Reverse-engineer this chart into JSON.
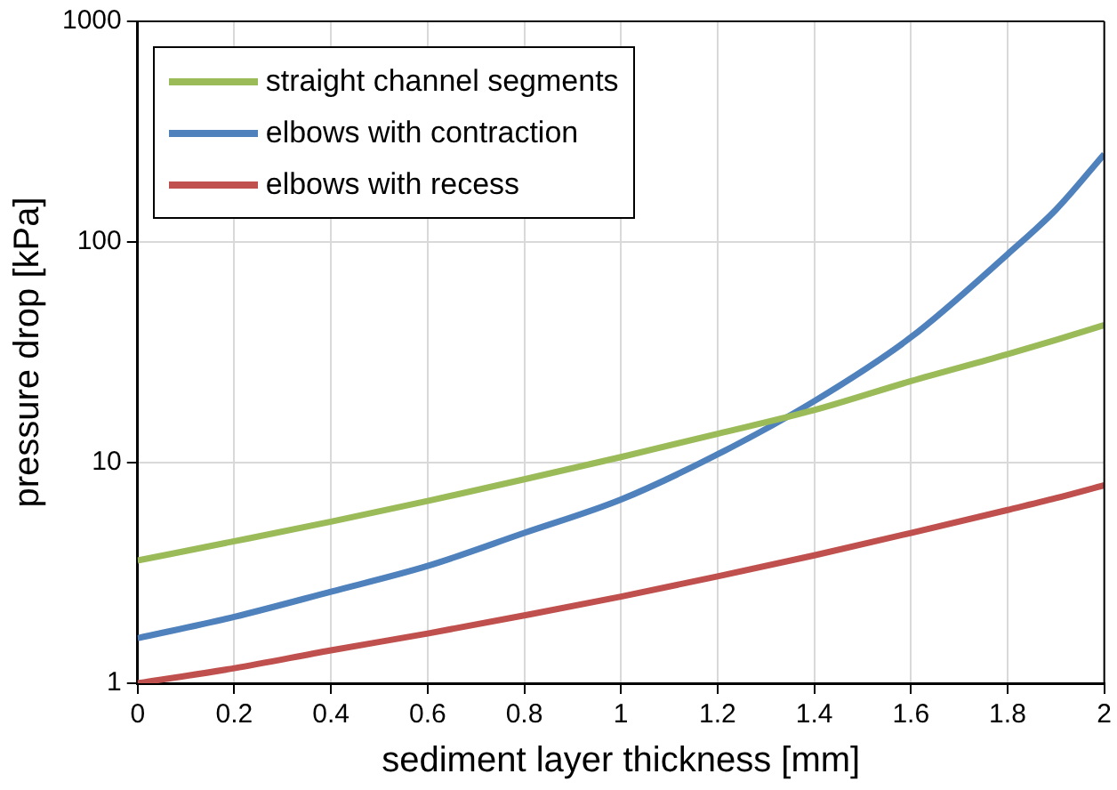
{
  "chart_data": {
    "type": "line",
    "xlabel": "sediment layer thickness [mm]",
    "ylabel": "pressure drop [kPa]",
    "x": [
      0,
      0.2,
      0.4,
      0.6,
      0.8,
      1,
      1.2,
      1.4,
      1.6,
      1.8,
      1.9,
      2
    ],
    "series": [
      {
        "name": "straight channel segments",
        "color": "#9bbb59",
        "values": [
          3.6,
          4.4,
          5.4,
          6.7,
          8.4,
          10.6,
          13.5,
          17.3,
          23.4,
          31,
          36,
          42
        ]
      },
      {
        "name": "elbows with contraction",
        "color": "#4f81bd",
        "values": [
          1.6,
          2.0,
          2.6,
          3.4,
          4.8,
          6.8,
          10.9,
          19,
          37,
          88,
          140,
          250
        ]
      },
      {
        "name": "elbows with recess",
        "color": "#c0504d",
        "values": [
          1.0,
          1.17,
          1.41,
          1.68,
          2.03,
          2.47,
          3.05,
          3.8,
          4.8,
          6.1,
          6.9,
          7.9
        ]
      }
    ],
    "xlim": [
      0,
      2
    ],
    "xticks": [
      0,
      0.2,
      0.4,
      0.6,
      0.8,
      1,
      1.2,
      1.4,
      1.6,
      1.8,
      2
    ],
    "ylim": [
      1,
      1000
    ],
    "yticks": [
      1,
      10,
      100,
      1000
    ],
    "log": "y",
    "grid": true,
    "legend": "top left",
    "marker": "none",
    "line_style": "solid"
  }
}
